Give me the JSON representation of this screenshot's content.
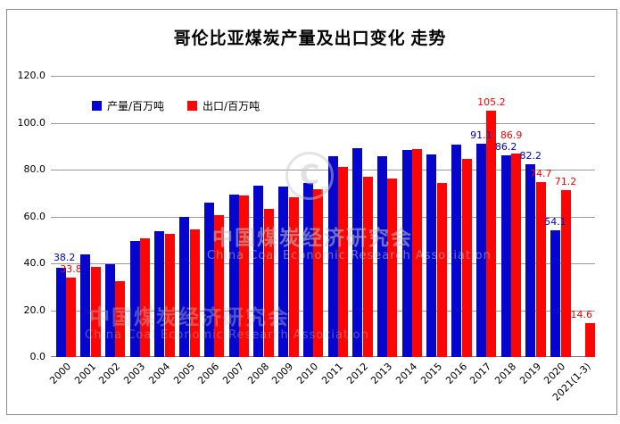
{
  "title": "哥伦比亚煤炭产量及出口变化 走势",
  "legend": {
    "production_label": "产量/百万吨",
    "export_label": "出口/百万吨"
  },
  "colors": {
    "production": "#0505CD",
    "export": "#FB0505",
    "production_label_text": "#0000CC",
    "export_label_text": "#FF0000",
    "gridline": "#9a9a9a",
    "axis": "#737373",
    "frame_border": "#8a8a8a"
  },
  "y_axis": {
    "min": 0,
    "max": 120,
    "step": 20,
    "tick_labels": [
      "120.0",
      "100.0",
      "80.0",
      "60.0",
      "40.0",
      "20.0",
      "0.0"
    ],
    "tick_values": [
      120,
      100,
      80,
      60,
      40,
      20,
      0
    ]
  },
  "watermark": {
    "logo_letter": "C",
    "logo_badge": "≡",
    "text_cn": "中国煤炭经济研究会",
    "text_en": "China Coal Economic Research Association"
  },
  "chart_data": {
    "type": "bar",
    "title": "哥伦比亚煤炭产量及出口变化 走势",
    "ylim": [
      0,
      120
    ],
    "grid": true,
    "legend_position": "top-left-inside",
    "categories": [
      "2000",
      "2001",
      "2002",
      "2003",
      "2004",
      "2005",
      "2006",
      "2007",
      "2008",
      "2009",
      "2010",
      "2011",
      "2012",
      "2013",
      "2014",
      "2015",
      "2016",
      "2017",
      "2018",
      "2019",
      "2020",
      "2021(1-3)"
    ],
    "series": [
      {
        "name": "产量/百万吨",
        "color": "#0505CD",
        "values": [
          38.2,
          43.9,
          39.5,
          49.5,
          53.8,
          59.7,
          66.0,
          69.4,
          73.3,
          72.6,
          74.2,
          85.6,
          89.3,
          85.7,
          88.4,
          86.3,
          90.5,
          91.1,
          86.2,
          82.2,
          54.1,
          null
        ],
        "shown_labels": [
          "38.2",
          null,
          null,
          null,
          null,
          null,
          null,
          null,
          null,
          null,
          null,
          null,
          null,
          null,
          null,
          null,
          null,
          "91.1",
          "86.2",
          "82.2",
          "54.1",
          null
        ]
      },
      {
        "name": "出口/百万吨",
        "color": "#FB0505",
        "values": [
          33.8,
          38.6,
          32.2,
          50.8,
          52.5,
          54.3,
          60.7,
          69.0,
          63.2,
          68.3,
          71.6,
          81.0,
          77.0,
          76.1,
          88.8,
          74.3,
          84.7,
          105.2,
          86.9,
          74.7,
          71.2,
          14.6
        ],
        "shown_labels": [
          "33.8",
          null,
          null,
          null,
          null,
          null,
          null,
          null,
          null,
          null,
          null,
          null,
          null,
          null,
          null,
          null,
          null,
          "105.2",
          "86.9",
          "74.7",
          "71.2",
          "14.6"
        ]
      }
    ]
  }
}
